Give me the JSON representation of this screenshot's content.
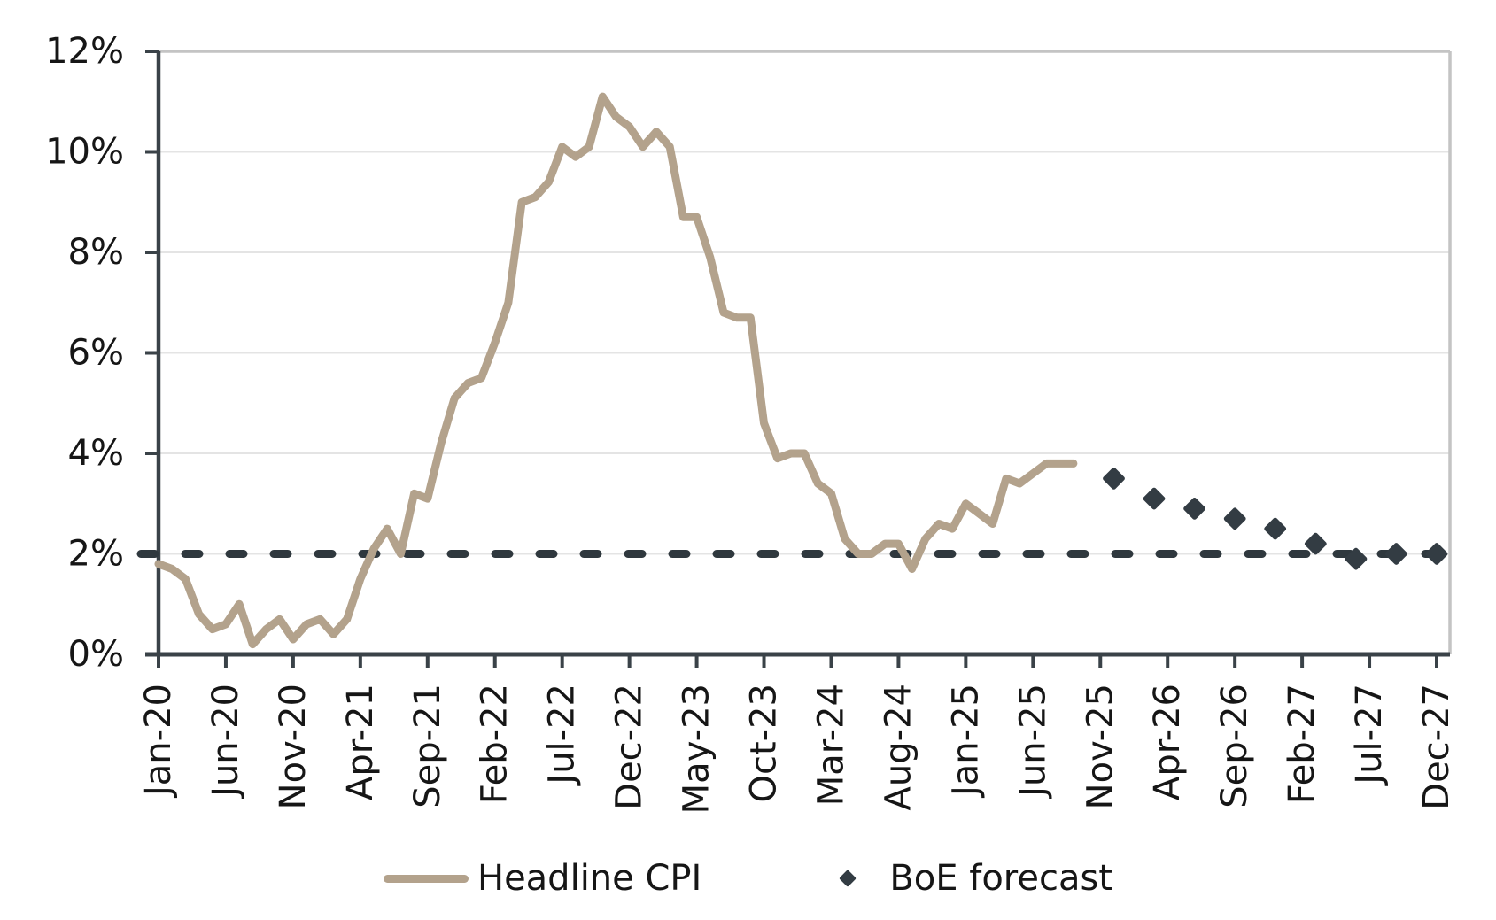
{
  "chart_data": {
    "type": "line",
    "title": "",
    "xlabel": "",
    "ylabel": "",
    "ylim": [
      0,
      12
    ],
    "y_tick_step": 2,
    "y_tick_labels": [
      "0%",
      "2%",
      "4%",
      "6%",
      "8%",
      "10%",
      "12%"
    ],
    "grid": "horizontal",
    "legend_position": "bottom",
    "x_ticks": [
      {
        "m": 0,
        "label": "Jan-20"
      },
      {
        "m": 5,
        "label": "Jun-20"
      },
      {
        "m": 10,
        "label": "Nov-20"
      },
      {
        "m": 15,
        "label": "Apr-21"
      },
      {
        "m": 20,
        "label": "Sep-21"
      },
      {
        "m": 25,
        "label": "Feb-22"
      },
      {
        "m": 30,
        "label": "Jul-22"
      },
      {
        "m": 35,
        "label": "Dec-22"
      },
      {
        "m": 40,
        "label": "May-23"
      },
      {
        "m": 45,
        "label": "Oct-23"
      },
      {
        "m": 50,
        "label": "Mar-24"
      },
      {
        "m": 55,
        "label": "Aug-24"
      },
      {
        "m": 60,
        "label": "Jan-25"
      },
      {
        "m": 65,
        "label": "Jun-25"
      },
      {
        "m": 70,
        "label": "Nov-25"
      },
      {
        "m": 75,
        "label": "Apr-26"
      },
      {
        "m": 80,
        "label": "Sep-26"
      },
      {
        "m": 85,
        "label": "Feb-27"
      },
      {
        "m": 90,
        "label": "Jul-27"
      },
      {
        "m": 95,
        "label": "Dec-27"
      }
    ],
    "series": [
      {
        "name": "Headline CPI",
        "type": "line",
        "color": "#b3a28c",
        "start_month": 0,
        "start_label": "Jan-20",
        "end_label": "Sep-25",
        "values": [
          1.8,
          1.7,
          1.5,
          0.8,
          0.5,
          0.6,
          1.0,
          0.2,
          0.5,
          0.7,
          0.3,
          0.6,
          0.7,
          0.4,
          0.7,
          1.5,
          2.1,
          2.5,
          2.0,
          3.2,
          3.1,
          4.2,
          5.1,
          5.4,
          5.5,
          6.2,
          7.0,
          9.0,
          9.1,
          9.4,
          10.1,
          9.9,
          10.1,
          11.1,
          10.7,
          10.5,
          10.1,
          10.4,
          10.1,
          8.7,
          8.7,
          7.9,
          6.8,
          6.7,
          6.7,
          4.6,
          3.9,
          4.0,
          4.0,
          3.4,
          3.2,
          2.3,
          2.0,
          2.0,
          2.2,
          2.2,
          1.7,
          2.3,
          2.6,
          2.5,
          3.0,
          2.8,
          2.6,
          3.5,
          3.4,
          3.6,
          3.8,
          3.8,
          3.8
        ]
      },
      {
        "name": "BoE forecast",
        "type": "scatter",
        "marker": "diamond",
        "color": "#333c43",
        "points": [
          {
            "m": 71,
            "label": "Dec-25",
            "v": 3.5
          },
          {
            "m": 74,
            "label": "Mar-26",
            "v": 3.1
          },
          {
            "m": 77,
            "label": "Jun-26",
            "v": 2.9
          },
          {
            "m": 80,
            "label": "Sep-26",
            "v": 2.7
          },
          {
            "m": 83,
            "label": "Dec-26",
            "v": 2.5
          },
          {
            "m": 86,
            "label": "Mar-27",
            "v": 2.2
          },
          {
            "m": 89,
            "label": "Jun-27",
            "v": 1.9
          },
          {
            "m": 92,
            "label": "Sep-27",
            "v": 2.0
          },
          {
            "m": 95,
            "label": "Dec-27",
            "v": 2.0
          }
        ]
      }
    ],
    "target_line": {
      "value": 2.0,
      "style": "dashed",
      "color": "#2f383e"
    },
    "colors": {
      "axis": "#3a4248",
      "grid": "#e4e4e4",
      "border": "#c4c4c4",
      "text": "#161616",
      "line": "#b3a28c",
      "forecast": "#333c43",
      "target": "#2f383e"
    }
  },
  "legend": {
    "items": [
      {
        "label": "Headline CPI",
        "marker": "line"
      },
      {
        "label": "BoE forecast",
        "marker": "diamond"
      }
    ]
  }
}
